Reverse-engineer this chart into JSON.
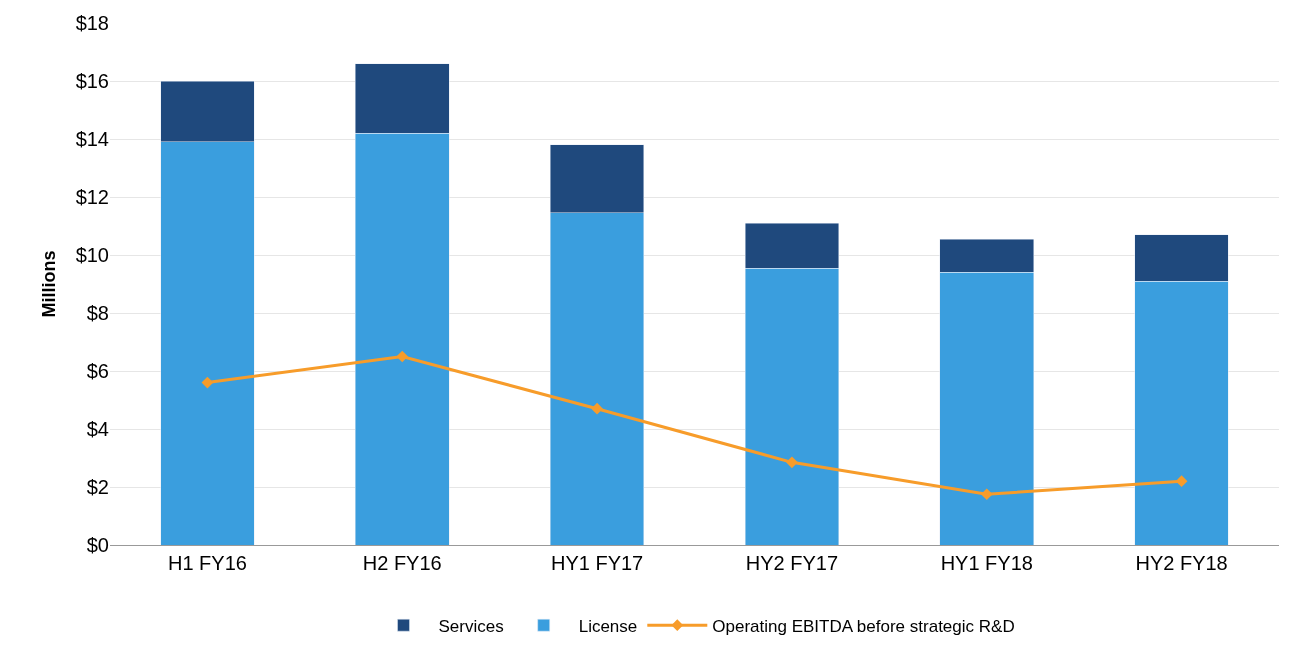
{
  "chart_data": {
    "type": "bar",
    "ylabel": "Millions",
    "categories": [
      "H1 FY16",
      "H2 FY16",
      "HY1 FY17",
      "HY2 FY17",
      "HY1 FY18",
      "HY2 FY18"
    ],
    "stacked": true,
    "series": [
      {
        "name": "License",
        "color": "#3a9ede",
        "values": [
          13.9,
          14.2,
          11.45,
          9.55,
          9.4,
          9.1
        ]
      },
      {
        "name": "Services",
        "color": "#1f497d",
        "values": [
          2.1,
          2.4,
          2.35,
          1.55,
          1.15,
          1.6
        ]
      },
      {
        "name": "Operating EBITDA before strategic R&D",
        "type": "line",
        "color": "#f79c2a",
        "marker": "diamond",
        "values": [
          5.6,
          6.5,
          4.7,
          2.85,
          1.75,
          2.2
        ]
      }
    ],
    "ylim": [
      0,
      18
    ],
    "yticks": [
      {
        "value": 0,
        "label": "$0"
      },
      {
        "value": 2,
        "label": "$2"
      },
      {
        "value": 4,
        "label": "$4"
      },
      {
        "value": 6,
        "label": "$6"
      },
      {
        "value": 8,
        "label": "$8"
      },
      {
        "value": 10,
        "label": "$10"
      },
      {
        "value": 12,
        "label": "$12"
      },
      {
        "value": 14,
        "label": "$14"
      },
      {
        "value": 16,
        "label": "$16"
      },
      {
        "value": 18,
        "label": "$18"
      }
    ],
    "grid": "y",
    "legend": "bottom"
  }
}
